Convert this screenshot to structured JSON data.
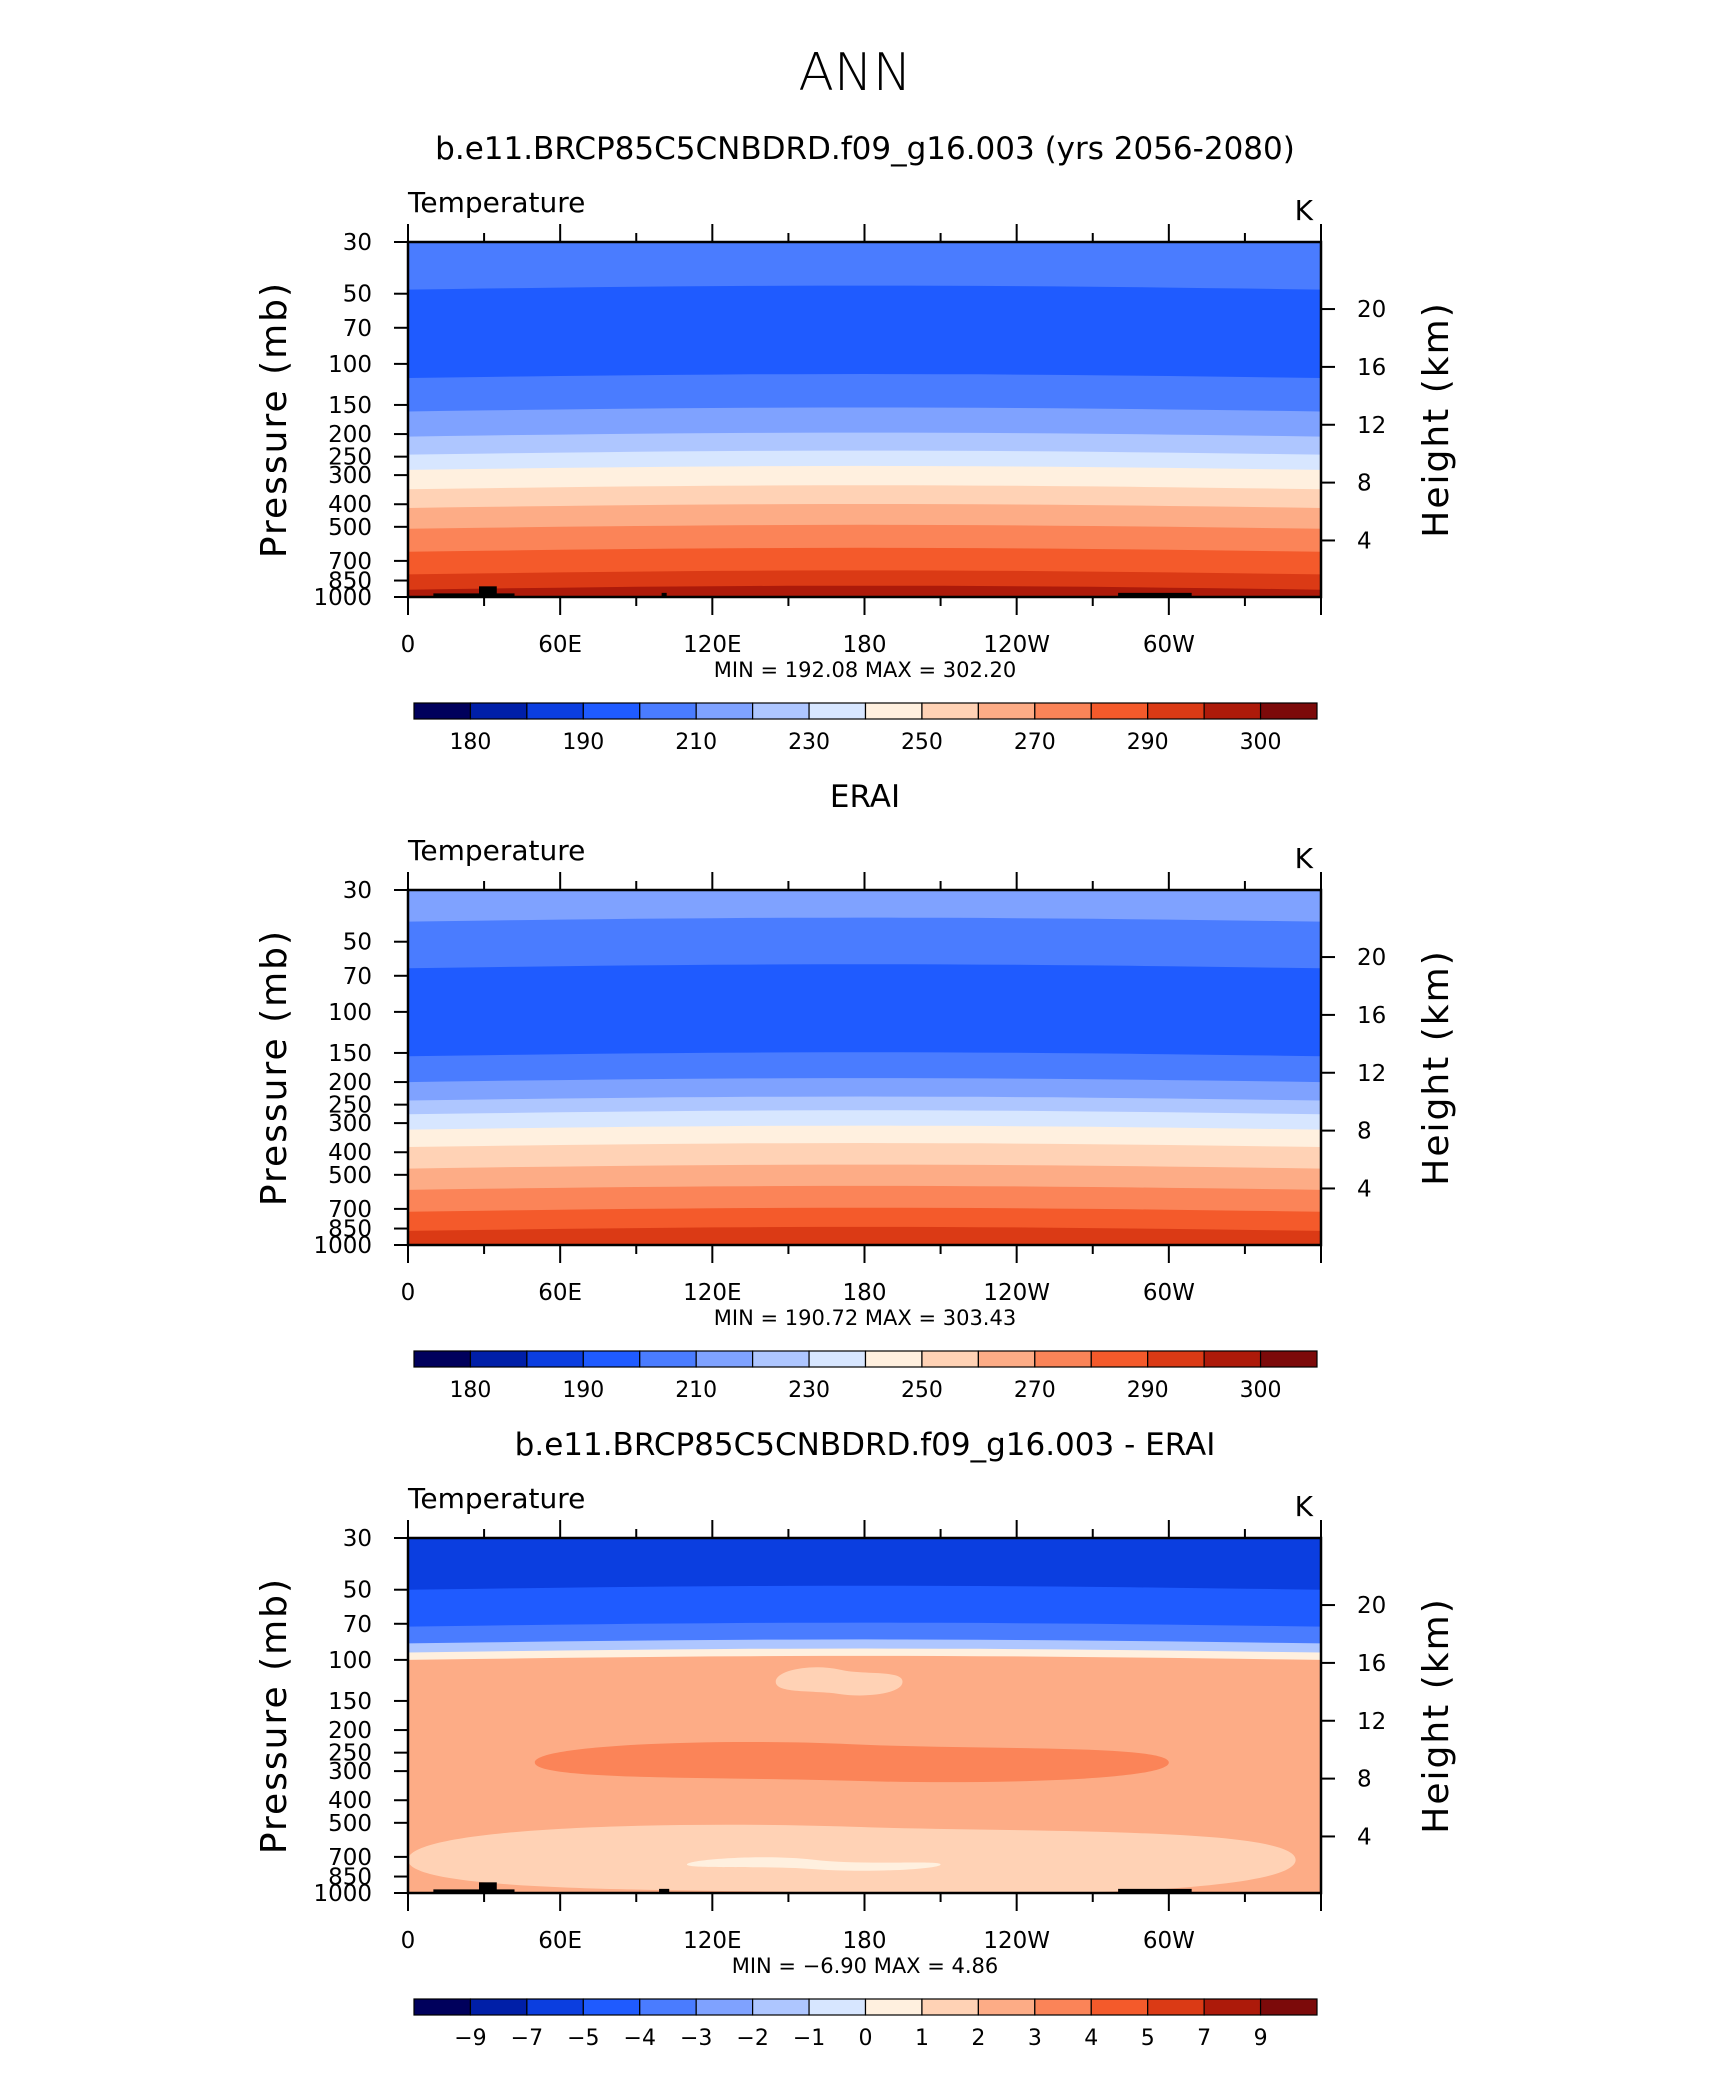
{
  "figure_title": "ANN",
  "palette": [
    "#00005c",
    "#001fa8",
    "#0b3ee0",
    "#1f5bff",
    "#4a7cff",
    "#7fa2ff",
    "#aec6ff",
    "#d7e6ff",
    "#fff0df",
    "#ffd2b5",
    "#fdac86",
    "#fb8458",
    "#f45a2b",
    "#db3a15",
    "#ad1a0a",
    "#7c0a0a"
  ],
  "mask_color": "#000000",
  "panels": [
    {
      "title": "b.e11.BRCP85C5CNBDRD.f09_g16.003 (yrs 2056-2080)",
      "variable": "Temperature",
      "units": "K",
      "y_axis_title": "Pressure  (mb)",
      "y2_axis_title": "Height  (km)",
      "stats": "MIN  =  192.08   MAX  =  302.20",
      "colorbar_labels": [
        "180",
        "190",
        "210",
        "230",
        "250",
        "270",
        "290",
        "300"
      ]
    },
    {
      "title": "ERAI",
      "variable": "Temperature",
      "units": "K",
      "y_axis_title": "Pressure  (mb)",
      "y2_axis_title": "Height  (km)",
      "stats": "MIN  =  190.72   MAX  =  303.43",
      "colorbar_labels": [
        "180",
        "190",
        "210",
        "230",
        "250",
        "270",
        "290",
        "300"
      ]
    },
    {
      "title": "b.e11.BRCP85C5CNBDRD.f09_g16.003 - ERAI",
      "variable": "Temperature",
      "units": "K",
      "y_axis_title": "Pressure  (mb)",
      "y2_axis_title": "Height  (km)",
      "stats": "MIN  =     −6.90   MAX  =      4.86",
      "colorbar_labels": [
        "−9",
        "−7",
        "−5",
        "−4",
        "−3",
        "−2",
        "−1",
        "0",
        "1",
        "2",
        "3",
        "4",
        "5",
        "7",
        "9"
      ]
    }
  ],
  "chart_data": [
    {
      "type": "heatmap",
      "title": "b.e11.BRCP85C5CNBDRD.f09_g16.003 (yrs 2056-2080)",
      "variable": "Temperature",
      "units": "K",
      "xlabel": "",
      "ylabel": "Pressure  (mb)",
      "y2label": "Height  (km)",
      "x_ticks": [
        "0",
        "60E",
        "120E",
        "180",
        "120W",
        "60W"
      ],
      "x_tick_values": [
        0,
        60,
        120,
        180,
        240,
        300
      ],
      "xlim": [
        0,
        360
      ],
      "y_ticks": [
        30,
        50,
        70,
        100,
        150,
        200,
        250,
        300,
        400,
        500,
        700,
        850,
        1000
      ],
      "ylim": [
        1000,
        30
      ],
      "y_scale": "log",
      "y2_ticks": [
        4,
        8,
        12,
        16,
        20
      ],
      "contour_levels": [
        180,
        185,
        190,
        200,
        210,
        220,
        230,
        240,
        250,
        260,
        270,
        280,
        290,
        295,
        300
      ],
      "min": 192.08,
      "max": 302.2,
      "bands": [
        {
          "p_top": 30,
          "p_bot": 48,
          "color_index": 4
        },
        {
          "p_top": 48,
          "p_bot": 115,
          "color_index": 3
        },
        {
          "p_top": 115,
          "p_bot": 160,
          "color_index": 4
        },
        {
          "p_top": 160,
          "p_bot": 205,
          "color_index": 5
        },
        {
          "p_top": 205,
          "p_bot": 245,
          "color_index": 6
        },
        {
          "p_top": 245,
          "p_bot": 285,
          "color_index": 7
        },
        {
          "p_top": 285,
          "p_bot": 345,
          "color_index": 8
        },
        {
          "p_top": 345,
          "p_bot": 415,
          "color_index": 9
        },
        {
          "p_top": 415,
          "p_bot": 510,
          "color_index": 10
        },
        {
          "p_top": 510,
          "p_bot": 640,
          "color_index": 11
        },
        {
          "p_top": 640,
          "p_bot": 800,
          "color_index": 12
        },
        {
          "p_top": 800,
          "p_bot": 930,
          "color_index": 13
        },
        {
          "p_top": 930,
          "p_bot": 1000,
          "color_index": 14
        }
      ],
      "terrain_mask": [
        {
          "lon_start": 10,
          "lon_end": 42,
          "p_top": 965
        },
        {
          "lon_start": 28,
          "lon_end": 35,
          "p_top": 900
        },
        {
          "lon_start": 100,
          "lon_end": 102,
          "p_top": 960
        },
        {
          "lon_start": 280,
          "lon_end": 309,
          "p_top": 960
        }
      ]
    },
    {
      "type": "heatmap",
      "title": "ERAI",
      "variable": "Temperature",
      "units": "K",
      "xlabel": "",
      "ylabel": "Pressure  (mb)",
      "y2label": "Height  (km)",
      "x_ticks": [
        "0",
        "60E",
        "120E",
        "180",
        "120W",
        "60W"
      ],
      "x_tick_values": [
        0,
        60,
        120,
        180,
        240,
        300
      ],
      "xlim": [
        0,
        360
      ],
      "y_ticks": [
        30,
        50,
        70,
        100,
        150,
        200,
        250,
        300,
        400,
        500,
        700,
        850,
        1000
      ],
      "ylim": [
        1000,
        30
      ],
      "y_scale": "log",
      "y2_ticks": [
        4,
        8,
        12,
        16,
        20
      ],
      "contour_levels": [
        180,
        185,
        190,
        200,
        210,
        220,
        230,
        240,
        250,
        260,
        270,
        280,
        290,
        295,
        300
      ],
      "min": 190.72,
      "max": 303.43,
      "bands": [
        {
          "p_top": 30,
          "p_bot": 41,
          "color_index": 5
        },
        {
          "p_top": 41,
          "p_bot": 65,
          "color_index": 4
        },
        {
          "p_top": 65,
          "p_bot": 155,
          "color_index": 3
        },
        {
          "p_top": 155,
          "p_bot": 200,
          "color_index": 4
        },
        {
          "p_top": 200,
          "p_bot": 240,
          "color_index": 5
        },
        {
          "p_top": 240,
          "p_bot": 275,
          "color_index": 6
        },
        {
          "p_top": 275,
          "p_bot": 320,
          "color_index": 7
        },
        {
          "p_top": 320,
          "p_bot": 380,
          "color_index": 8
        },
        {
          "p_top": 380,
          "p_bot": 470,
          "color_index": 9
        },
        {
          "p_top": 470,
          "p_bot": 580,
          "color_index": 10
        },
        {
          "p_top": 580,
          "p_bot": 720,
          "color_index": 11
        },
        {
          "p_top": 720,
          "p_bot": 870,
          "color_index": 12
        },
        {
          "p_top": 870,
          "p_bot": 1000,
          "color_index": 13
        }
      ],
      "terrain_mask": []
    },
    {
      "type": "heatmap",
      "title": "b.e11.BRCP85C5CNBDRD.f09_g16.003 - ERAI",
      "variable": "Temperature",
      "units": "K",
      "xlabel": "",
      "ylabel": "Pressure  (mb)",
      "y2label": "Height  (km)",
      "x_ticks": [
        "0",
        "60E",
        "120E",
        "180",
        "120W",
        "60W"
      ],
      "x_tick_values": [
        0,
        60,
        120,
        180,
        240,
        300
      ],
      "xlim": [
        0,
        360
      ],
      "y_ticks": [
        30,
        50,
        70,
        100,
        150,
        200,
        250,
        300,
        400,
        500,
        700,
        850,
        1000
      ],
      "ylim": [
        1000,
        30
      ],
      "y_scale": "log",
      "y2_ticks": [
        4,
        8,
        12,
        16,
        20
      ],
      "contour_levels": [
        -9,
        -7,
        -5,
        -4,
        -3,
        -2,
        -1,
        0,
        1,
        2,
        3,
        4,
        5,
        7,
        9
      ],
      "min": -6.9,
      "max": 4.86,
      "bands": [
        {
          "p_top": 30,
          "p_bot": 50,
          "color_index": 2
        },
        {
          "p_top": 50,
          "p_bot": 72,
          "color_index": 3
        },
        {
          "p_top": 72,
          "p_bot": 85,
          "color_index": 4
        },
        {
          "p_top": 85,
          "p_bot": 93,
          "color_index": 6
        },
        {
          "p_top": 93,
          "p_bot": 100,
          "color_index": 8
        },
        {
          "p_top": 100,
          "p_bot": 1000,
          "color_index": 10
        }
      ],
      "patches": [
        {
          "lon_start": 145,
          "lon_end": 195,
          "p_top": 110,
          "p_bot": 140,
          "color_index": 9
        },
        {
          "lon_start": 50,
          "lon_end": 300,
          "p_top": 230,
          "p_bot": 330,
          "color_index": 11
        },
        {
          "lon_start": 0,
          "lon_end": 350,
          "p_top": 520,
          "p_bot": 1000,
          "color_index": 9
        },
        {
          "lon_start": 110,
          "lon_end": 210,
          "p_top": 720,
          "p_bot": 790,
          "color_index": 8
        }
      ],
      "terrain_mask": [
        {
          "lon_start": 10,
          "lon_end": 42,
          "p_top": 965
        },
        {
          "lon_start": 28,
          "lon_end": 35,
          "p_top": 900
        },
        {
          "lon_start": 99,
          "lon_end": 103,
          "p_top": 960
        },
        {
          "lon_start": 280,
          "lon_end": 309,
          "p_top": 960
        }
      ]
    }
  ]
}
